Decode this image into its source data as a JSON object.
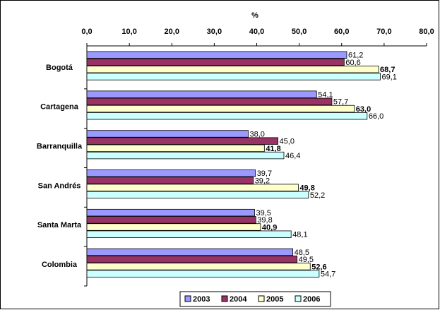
{
  "chart_data": {
    "type": "bar",
    "orientation": "horizontal",
    "x_label": "%",
    "categories": [
      "Bogotá",
      "Cartagena",
      "Barranquilla",
      "San Andrés",
      "Santa Marta",
      "Colombia"
    ],
    "series": [
      {
        "name": "2003",
        "color": "#9999ff",
        "values": [
          61.2,
          54.1,
          38.0,
          39.7,
          39.5,
          48.5
        ],
        "value_labels": [
          "61,2",
          "54,1",
          "38,0",
          "39,7",
          "39,5",
          "48,5"
        ]
      },
      {
        "name": "2004",
        "color": "#993366",
        "values": [
          60.6,
          57.7,
          45.0,
          39.2,
          39.8,
          49.5
        ],
        "value_labels": [
          "60,6",
          "57,7",
          "45,0",
          "39,2",
          "39,8",
          "49,5"
        ]
      },
      {
        "name": "2005",
        "color": "#ffffcc",
        "values": [
          68.7,
          63.0,
          41.8,
          49.8,
          40.9,
          52.6
        ],
        "value_labels": [
          "68,7",
          "63,0",
          "41,8",
          "49,8",
          "40,9",
          "52,6"
        ]
      },
      {
        "name": "2006",
        "color": "#ccffff",
        "values": [
          69.1,
          66.0,
          46.4,
          52.2,
          48.1,
          54.7
        ],
        "value_labels": [
          "69,1",
          "66,0",
          "46,4",
          "52,2",
          "48,1",
          "54,7"
        ]
      }
    ],
    "xlim": [
      0,
      80
    ],
    "xticks": [
      {
        "value": 0,
        "label": "0,0"
      },
      {
        "value": 10,
        "label": "10,0"
      },
      {
        "value": 20,
        "label": "20,0"
      },
      {
        "value": 30,
        "label": "30,0"
      },
      {
        "value": 40,
        "label": "40,0"
      },
      {
        "value": 50,
        "label": "50,0"
      },
      {
        "value": 60,
        "label": "60,0"
      },
      {
        "value": 70,
        "label": "70,0"
      },
      {
        "value": 80,
        "label": "80,0"
      }
    ],
    "legend": "bottom"
  }
}
